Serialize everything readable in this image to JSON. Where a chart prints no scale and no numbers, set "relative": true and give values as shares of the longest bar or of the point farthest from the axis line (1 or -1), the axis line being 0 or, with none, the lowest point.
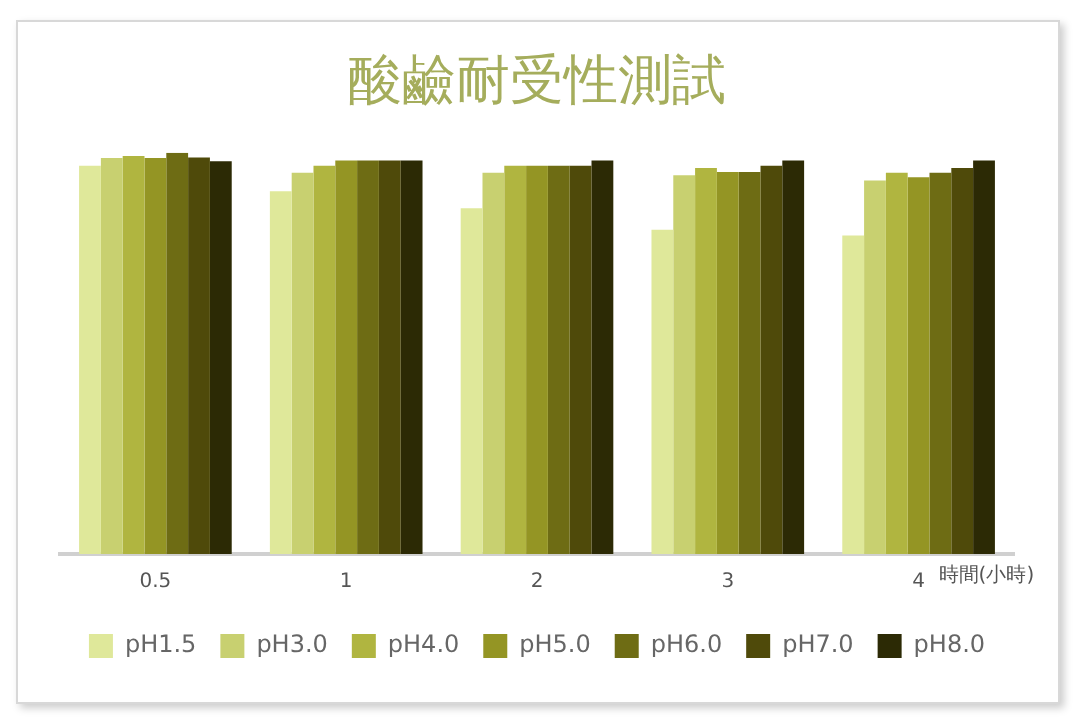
{
  "chart_data": {
    "type": "bar",
    "title": "酸鹼耐受性測試",
    "xlabel": "時間(小時)",
    "relative": true,
    "categories": [
      "0.5",
      "1",
      "2",
      "3",
      "4"
    ],
    "legend": "bottom",
    "grid": false,
    "series": [
      {
        "name": "pH1.5",
        "color": "#dfe89a",
        "values": [
          0.968,
          0.904,
          0.862,
          0.808,
          0.794
        ]
      },
      {
        "name": "pH3.0",
        "color": "#c8d070",
        "values": [
          0.987,
          0.95,
          0.95,
          0.944,
          0.931
        ]
      },
      {
        "name": "pH4.0",
        "color": "#b0b540",
        "values": [
          0.992,
          0.968,
          0.968,
          0.962,
          0.95
        ]
      },
      {
        "name": "pH5.0",
        "color": "#949524",
        "values": [
          0.987,
          0.981,
          0.968,
          0.952,
          0.939
        ]
      },
      {
        "name": "pH6.0",
        "color": "#6e6c14",
        "values": [
          1,
          0.981,
          0.968,
          0.952,
          0.95
        ]
      },
      {
        "name": "pH7.0",
        "color": "#4f4a0a",
        "values": [
          0.988,
          0.981,
          0.968,
          0.968,
          0.962
        ]
      },
      {
        "name": "pH8.0",
        "color": "#2c2a05",
        "values": [
          0.979,
          0.981,
          0.981,
          0.981,
          0.981
        ]
      }
    ]
  }
}
